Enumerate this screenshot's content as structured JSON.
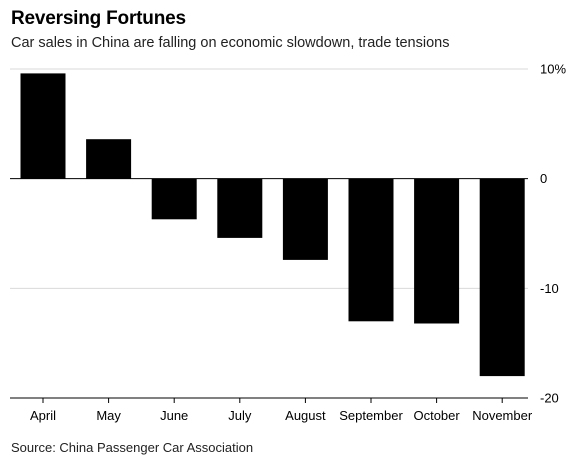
{
  "header": {
    "title": "Reversing Fortunes",
    "subtitle": "Car sales in China are falling on economic slowdown, trade tensions"
  },
  "footer": {
    "source": "Source: China Passenger Car Association"
  },
  "colors": {
    "bar": "#000000",
    "grid": "#d9d9d9",
    "zero_line": "#000000",
    "text": "#000000"
  },
  "chart_data": {
    "type": "bar",
    "categories": [
      "April",
      "May",
      "June",
      "July",
      "August",
      "September",
      "October",
      "November"
    ],
    "values": [
      9.6,
      3.6,
      -3.7,
      -5.4,
      -7.4,
      -13.0,
      -13.2,
      -18.0
    ],
    "y_ticks": [
      10,
      0,
      -10,
      -20
    ],
    "y_tick_labels": [
      "10%",
      "0",
      "-10",
      "-20"
    ],
    "ylim": [
      -20,
      10
    ],
    "y_axis_position": "right",
    "grid": true,
    "xlabel": "",
    "ylabel": ""
  }
}
